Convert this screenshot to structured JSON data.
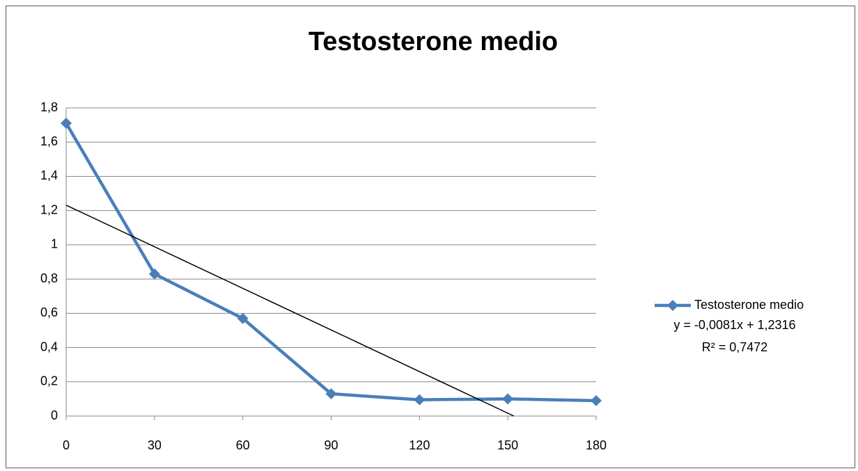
{
  "chart_data": {
    "type": "line",
    "title": "Testosterone medio",
    "x": [
      0,
      30,
      60,
      90,
      120,
      150,
      180
    ],
    "series": [
      {
        "name": "Testosterone medio",
        "color": "#4a7ebb",
        "values": [
          1.71,
          0.83,
          0.57,
          0.13,
          0.095,
          0.1,
          0.09
        ]
      }
    ],
    "xlim": [
      0,
      180
    ],
    "xticks": [
      0,
      30,
      60,
      90,
      120,
      150,
      180
    ],
    "ylim": [
      0,
      1.8
    ],
    "yticks": [
      0,
      {
        "value": 0.2,
        "label": "0,2"
      },
      {
        "value": 0.4,
        "label": "0,4"
      },
      {
        "value": 0.6,
        "label": "0,6"
      },
      {
        "value": 0.8,
        "label": "0,8"
      },
      1,
      {
        "value": 1.2,
        "label": "1,2"
      },
      {
        "value": 1.4,
        "label": "1,4"
      },
      {
        "value": 1.6,
        "label": "1,6"
      },
      {
        "value": 1.8,
        "label": "1,8"
      }
    ],
    "grid": true,
    "legend": "right",
    "trendline": {
      "slope": -0.0081,
      "intercept": 1.2316,
      "color": "#000000",
      "equation": "y = -0,0081x + 1,2316",
      "r_squared": "R² = 0,7472"
    }
  }
}
